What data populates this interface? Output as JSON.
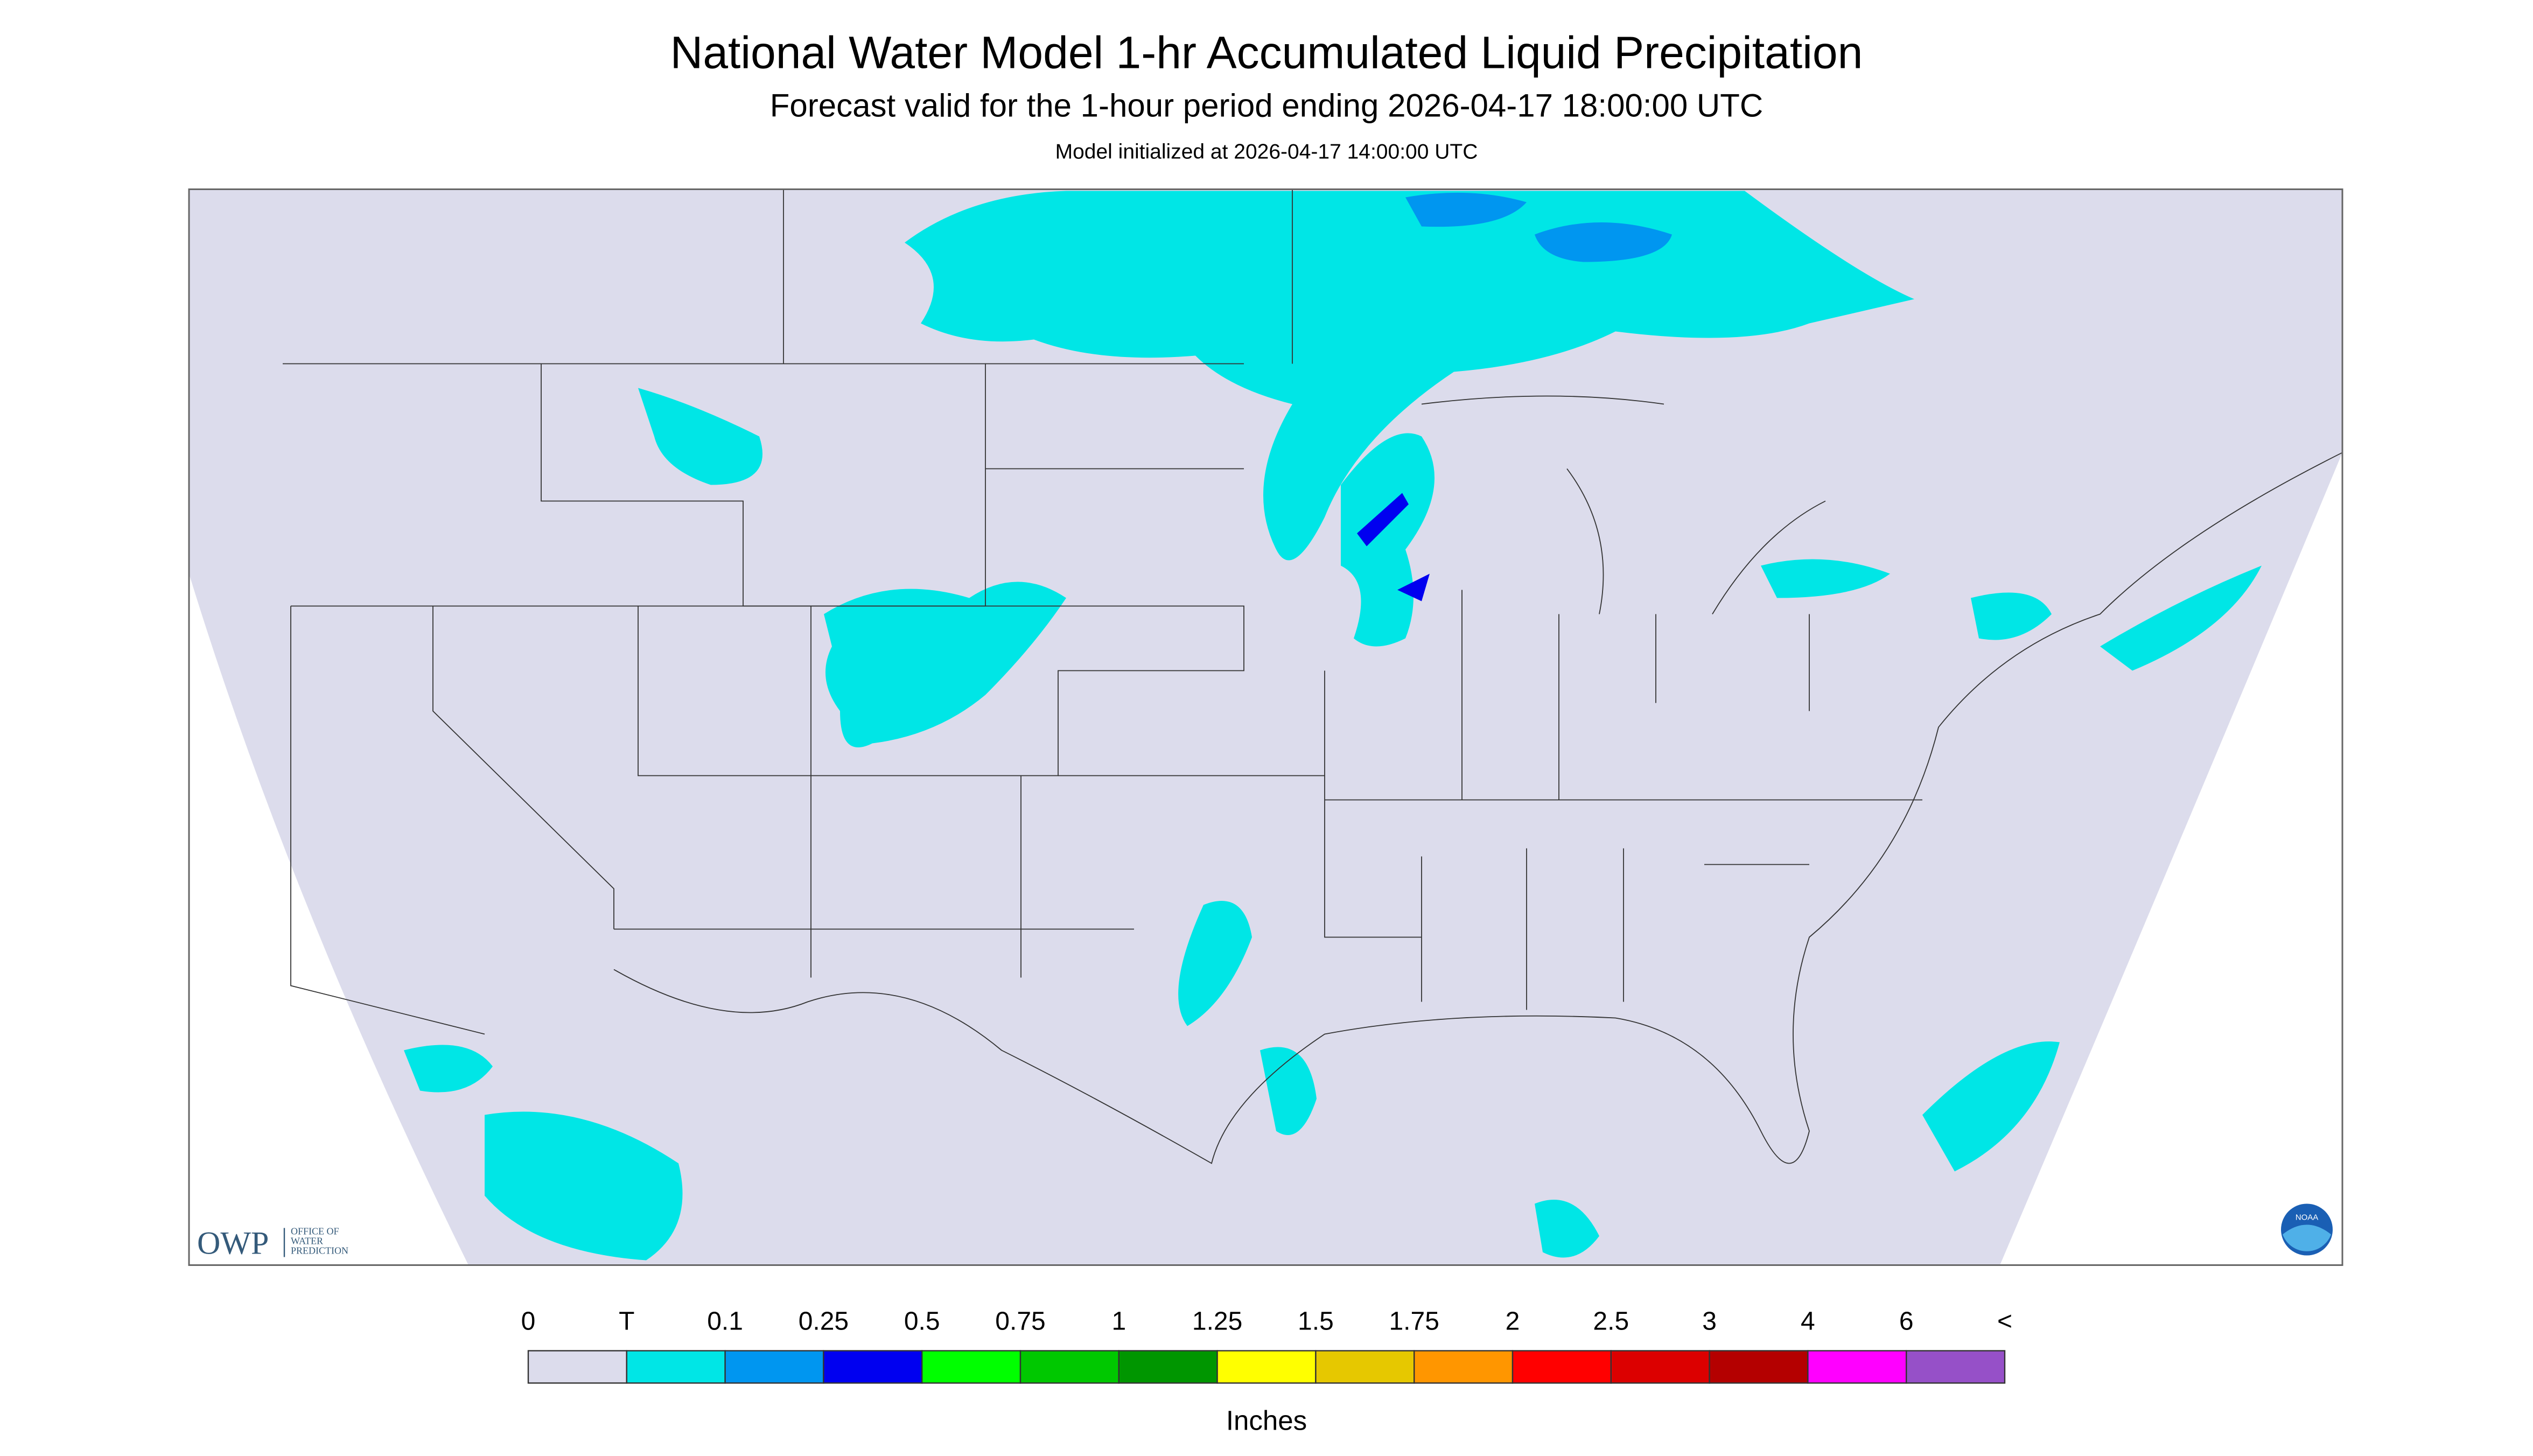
{
  "header": {
    "title": "National Water Model 1-hr Accumulated Liquid Precipitation",
    "subtitle": "Forecast valid for the 1-hour period ending 2026-04-17 18:00:00 UTC",
    "init": "Model initialized at 2026-04-17 14:00:00 UTC"
  },
  "logo": {
    "name": "OWP",
    "lines": [
      "OFFICE OF",
      "WATER",
      "PREDICTION"
    ],
    "badge": "NOAA"
  },
  "legend": {
    "labels": [
      "0",
      "T",
      "0.1",
      "0.25",
      "0.5",
      "0.75",
      "1",
      "1.25",
      "1.5",
      "1.75",
      "2",
      "2.5",
      "3",
      "4",
      "6",
      "<"
    ],
    "colors": [
      "#dcdcec",
      "#00e6e6",
      "#0096f0",
      "#0000f0",
      "#00ff00",
      "#00c800",
      "#009600",
      "#ffff00",
      "#e6c800",
      "#ff9600",
      "#ff0000",
      "#dc0000",
      "#b40000",
      "#ff00ff",
      "#9650c8"
    ],
    "unit": "Inches"
  }
}
